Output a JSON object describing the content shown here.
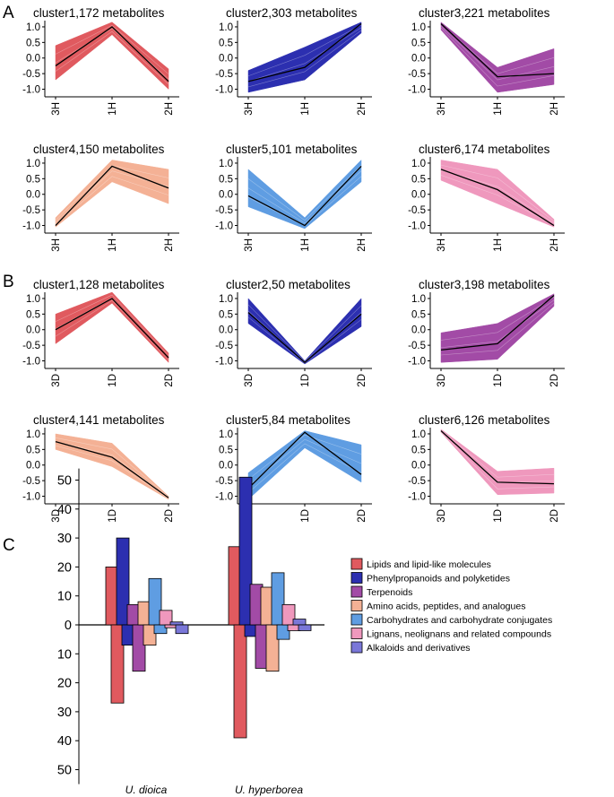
{
  "panel_letters": [
    "A",
    "B",
    "C"
  ],
  "colors": {
    "lipids": "#e05a5f",
    "phenylpropanoids": "#2c2fb0",
    "terpenoids": "#a24ba6",
    "amino": "#f4b195",
    "carbohydrates": "#5f9de2",
    "lignans": "#ef98bd",
    "alkaloids": "#7a77d8"
  },
  "chart_data": [
    {
      "type": "line",
      "panel": "A",
      "title": "cluster1,172 metabolites",
      "categories": [
        "3H",
        "1H",
        "2H"
      ],
      "mean": [
        -0.25,
        1.0,
        -0.75
      ],
      "band_upper": [
        0.4,
        1.15,
        -0.35
      ],
      "band_lower": [
        -0.7,
        0.75,
        -1.0
      ],
      "ylim": [
        -1.1,
        1.2
      ],
      "yticks": [
        "1.0",
        "0.5",
        "0.0",
        "-0.5",
        "-1.0"
      ],
      "color": "#e05a5f"
    },
    {
      "type": "line",
      "panel": "A",
      "title": "cluster2,303 metabolites",
      "categories": [
        "3H",
        "1H",
        "2H"
      ],
      "mean": [
        -0.75,
        -0.3,
        1.1
      ],
      "band_upper": [
        -0.4,
        0.35,
        1.15
      ],
      "band_lower": [
        -1.1,
        -0.7,
        0.8
      ],
      "ylim": [
        -1.1,
        1.2
      ],
      "yticks": [
        "1.0",
        "0.5",
        "0.0",
        "-0.5",
        "-1.0"
      ],
      "color": "#2c2fb0"
    },
    {
      "type": "line",
      "panel": "A",
      "title": "cluster3,221 metabolites",
      "categories": [
        "3H",
        "1H",
        "2H"
      ],
      "mean": [
        1.1,
        -0.6,
        -0.5
      ],
      "band_upper": [
        1.15,
        -0.3,
        0.3
      ],
      "band_lower": [
        0.9,
        -1.1,
        -0.85
      ],
      "ylim": [
        -1.1,
        1.2
      ],
      "yticks": [
        "1.0",
        "0.5",
        "0.0",
        "-0.5",
        "-1.0"
      ],
      "color": "#a24ba6"
    },
    {
      "type": "line",
      "panel": "A",
      "title": "cluster4,150 metabolites",
      "categories": [
        "3H",
        "1H",
        "2H"
      ],
      "mean": [
        -1.0,
        0.9,
        0.2
      ],
      "band_upper": [
        -0.75,
        1.1,
        0.8
      ],
      "band_lower": [
        -1.05,
        0.4,
        -0.3
      ],
      "ylim": [
        -1.1,
        1.2
      ],
      "yticks": [
        "1.0",
        "0.5",
        "0.0",
        "-0.5",
        "-1.0"
      ],
      "color": "#f4b195"
    },
    {
      "type": "line",
      "panel": "A",
      "title": "cluster5,101 metabolites",
      "categories": [
        "3H",
        "1H",
        "2H"
      ],
      "mean": [
        -0.05,
        -1.0,
        0.9
      ],
      "band_upper": [
        0.8,
        -0.75,
        1.1
      ],
      "band_lower": [
        -0.4,
        -1.1,
        0.4
      ],
      "ylim": [
        -1.1,
        1.2
      ],
      "yticks": [
        "1.0",
        "0.5",
        "0.0",
        "-0.5",
        "-1.0"
      ],
      "color": "#5f9de2"
    },
    {
      "type": "line",
      "panel": "A",
      "title": "cluster6,174 metabolites",
      "categories": [
        "3H",
        "1H",
        "2H"
      ],
      "mean": [
        0.8,
        0.15,
        -1.0
      ],
      "band_upper": [
        1.1,
        0.8,
        -0.8
      ],
      "band_lower": [
        0.45,
        -0.3,
        -1.05
      ],
      "ylim": [
        -1.1,
        1.2
      ],
      "yticks": [
        "1.0",
        "0.5",
        "0.0",
        "-0.5",
        "-1.0"
      ],
      "color": "#ef98bd"
    },
    {
      "type": "line",
      "panel": "B",
      "title": "cluster1,128 metabolites",
      "categories": [
        "3D",
        "1D",
        "2D"
      ],
      "mean": [
        0.0,
        1.0,
        -0.9
      ],
      "band_upper": [
        0.5,
        1.2,
        -0.75
      ],
      "band_lower": [
        -0.45,
        0.85,
        -1.05
      ],
      "ylim": [
        -1.1,
        1.2
      ],
      "yticks": [
        "1.0",
        "0.5",
        "0.0",
        "-0.5",
        "-1.0"
      ],
      "color": "#e05a5f"
    },
    {
      "type": "line",
      "panel": "B",
      "title": "cluster2,50 metabolites",
      "categories": [
        "3D",
        "1D",
        "2D"
      ],
      "mean": [
        0.55,
        -1.05,
        0.5
      ],
      "band_upper": [
        1.0,
        -1.0,
        1.0
      ],
      "band_lower": [
        0.2,
        -1.1,
        0.1
      ],
      "ylim": [
        -1.1,
        1.2
      ],
      "yticks": [
        "1.0",
        "0.5",
        "0.0",
        "-0.5",
        "-1.0"
      ],
      "color": "#2c2fb0"
    },
    {
      "type": "line",
      "panel": "B",
      "title": "cluster3,198 metabolites",
      "categories": [
        "3D",
        "1D",
        "2D"
      ],
      "mean": [
        -0.65,
        -0.45,
        1.1
      ],
      "band_upper": [
        -0.1,
        0.2,
        1.15
      ],
      "band_lower": [
        -1.05,
        -0.95,
        0.75
      ],
      "ylim": [
        -1.1,
        1.2
      ],
      "yticks": [
        "1.0",
        "0.5",
        "0.0",
        "-0.5",
        "-1.0"
      ],
      "color": "#a24ba6"
    },
    {
      "type": "line",
      "panel": "B",
      "title": "cluster4,141 metabolites",
      "categories": [
        "3D",
        "1D",
        "2D"
      ],
      "mean": [
        0.75,
        0.25,
        -1.05
      ],
      "band_upper": [
        1.0,
        0.7,
        -1.0
      ],
      "band_lower": [
        0.5,
        -0.05,
        -1.1
      ],
      "ylim": [
        -1.1,
        1.2
      ],
      "yticks": [
        "1.0",
        "0.5",
        "0.0",
        "-0.5",
        "-1.0"
      ],
      "color": "#f4b195"
    },
    {
      "type": "line",
      "panel": "B",
      "title": "cluster5,84 metabolites",
      "categories": [
        "3D",
        "1D",
        "2D"
      ],
      "mean": [
        -0.75,
        1.05,
        -0.3
      ],
      "band_upper": [
        -0.25,
        1.1,
        0.65
      ],
      "band_lower": [
        -1.1,
        0.55,
        -0.55
      ],
      "ylim": [
        -1.1,
        1.2
      ],
      "yticks": [
        "1.0",
        "0.5",
        "0.0",
        "-0.5",
        "-1.0"
      ],
      "color": "#5f9de2"
    },
    {
      "type": "line",
      "panel": "B",
      "title": "cluster6,126 metabolites",
      "categories": [
        "3D",
        "1D",
        "2D"
      ],
      "mean": [
        1.1,
        -0.55,
        -0.6
      ],
      "band_upper": [
        1.15,
        -0.2,
        -0.1
      ],
      "band_lower": [
        1.05,
        -0.95,
        -0.9
      ],
      "ylim": [
        -1.1,
        1.2
      ],
      "yticks": [
        "1.0",
        "0.5",
        "0.0",
        "-0.5",
        "-1.0"
      ],
      "color": "#ef98bd"
    },
    {
      "type": "bar",
      "panel": "C",
      "categories": [
        "U. dioica",
        "U. hyperborea"
      ],
      "ylim": [
        -50,
        50
      ],
      "ytick_values": [
        50,
        40,
        30,
        20,
        10,
        0,
        -10,
        -20,
        -30,
        -40,
        -50
      ],
      "ytick_labels": [
        "50",
        "40",
        "30",
        "20",
        "10",
        "0",
        "10",
        "20",
        "30",
        "40",
        "50"
      ],
      "series": [
        {
          "name": "Lipids and lipid-like molecules",
          "color": "#e05a5f",
          "up": [
            20,
            27
          ],
          "down": [
            27,
            39
          ]
        },
        {
          "name": "Phenylpropanoids and polyketides",
          "color": "#2c2fb0",
          "up": [
            30,
            51
          ],
          "down": [
            7,
            4
          ]
        },
        {
          "name": "Terpenoids",
          "color": "#a24ba6",
          "up": [
            7,
            14
          ],
          "down": [
            16,
            15
          ]
        },
        {
          "name": "Amino acids, peptides, and analogues",
          "color": "#f4b195",
          "up": [
            8,
            13
          ],
          "down": [
            7,
            16
          ]
        },
        {
          "name": "Carbohydrates and carbohydrate conjugates",
          "color": "#5f9de2",
          "up": [
            16,
            18
          ],
          "down": [
            3,
            5
          ]
        },
        {
          "name": "Lignans, neolignans and related compounds",
          "color": "#ef98bd",
          "up": [
            5,
            7
          ],
          "down": [
            1,
            2
          ]
        },
        {
          "name": "Alkaloids and derivatives",
          "color": "#7a77d8",
          "up": [
            1,
            2
          ],
          "down": [
            3,
            2
          ]
        }
      ]
    }
  ]
}
